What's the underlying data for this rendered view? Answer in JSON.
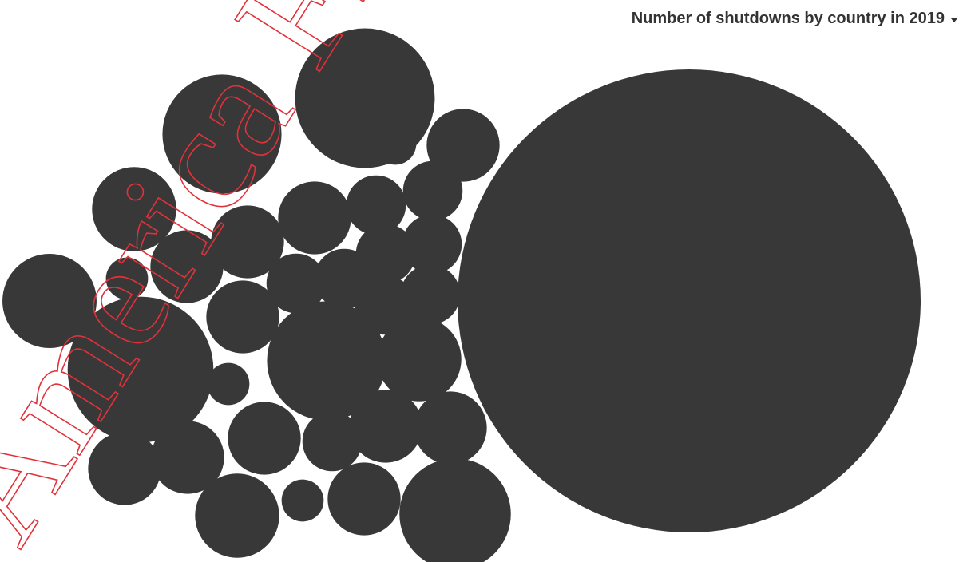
{
  "title_dropdown": {
    "label": "Number of shutdowns by country in 2019",
    "icon": "caret-down-icon"
  },
  "colors": {
    "bubble": "#383838",
    "label": "#111111",
    "watermark": "#e0323a",
    "background": "#ffffff"
  },
  "watermark_text": "America First Le",
  "chart_data": {
    "type": "bubble",
    "title": "Number of shutdowns by country in 2019",
    "series": [
      {
        "label": "",
        "value": 121
      },
      {
        "label": "",
        "value": 12
      },
      {
        "label": "",
        "value": 11
      },
      {
        "label": "",
        "value": 8
      },
      {
        "label": "",
        "value": 8
      },
      {
        "label": "",
        "value": 7
      },
      {
        "label": "",
        "value": 5
      },
      {
        "label": "",
        "value": 4
      },
      {
        "label": "",
        "value": 4
      },
      {
        "label": "",
        "value": 4
      },
      {
        "label": "",
        "value": 3
      },
      {
        "label": "",
        "value": 3
      },
      {
        "label": "",
        "value": 3
      },
      {
        "label": "",
        "value": 3
      },
      {
        "label": "",
        "value": 3
      },
      {
        "label": "",
        "value": 3
      },
      {
        "label": "",
        "value": 3
      },
      {
        "label": "",
        "value": 3
      },
      {
        "label": "",
        "value": 3
      },
      {
        "label": "",
        "value": 3
      },
      {
        "label": "",
        "value": 3
      },
      {
        "label": "",
        "value": 2
      },
      {
        "label": "",
        "value": 2
      },
      {
        "label": "",
        "value": 2
      },
      {
        "label": "",
        "value": 2
      },
      {
        "label": "",
        "value": 2
      },
      {
        "label": "",
        "value": 2
      },
      {
        "label": "",
        "value": 2
      },
      {
        "label": "",
        "value": 2
      },
      {
        "label": "",
        "value": 2
      },
      {
        "label": "",
        "value": 1
      },
      {
        "label": "",
        "value": 1
      },
      {
        "label": "",
        "value": 1
      },
      {
        "label": "",
        "value": 1
      },
      {
        "label": "",
        "value": 1
      },
      {
        "label": "",
        "value": 1
      }
    ]
  }
}
